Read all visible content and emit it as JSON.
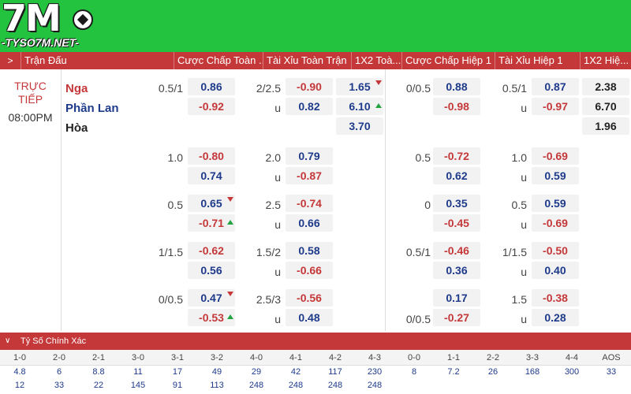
{
  "logo": {
    "big": "7M",
    "site": "-TYSO7M.NET-"
  },
  "header": {
    "arrow": ">",
    "cols": [
      "Trận Đấu",
      "Cược Chấp Toàn ...",
      "Tài Xỉu Toàn Trận",
      "1X2 Toà...",
      "Cược Chấp Hiệp 1",
      "Tài Xỉu Hiệp 1",
      "1X2 Hiệ..."
    ]
  },
  "match": {
    "status_line1": "TRỰC",
    "status_line2": "TIẾP",
    "time": "08:00PM",
    "home": "Nga",
    "away": "Phần Lan",
    "draw": "Hòa"
  },
  "rows": [
    {
      "ah_line": "0.5/1",
      "ah_home": "0.86",
      "ah_away": "-0.92",
      "ou_line": "2/2.5",
      "ou_over": "-0.90",
      "ou_u": "u",
      "ou_under": "0.82",
      "x12": [
        "1.65",
        "6.10",
        "3.70"
      ],
      "h1_ah_line": "0/0.5",
      "h1_ah_home": "0.88",
      "h1_ah_away": "-0.98",
      "h1_ou_line": "0.5/1",
      "h1_ou_over": "0.87",
      "h1_ou_u": "u",
      "h1_ou_under": "-0.97",
      "h1_x12": [
        "2.38",
        "6.70",
        "1.96"
      ]
    },
    {
      "ah_line": "1.0",
      "ah_home": "-0.80",
      "ah_away": "0.74",
      "ou_line": "2.0",
      "ou_over": "0.79",
      "ou_u": "u",
      "ou_under": "-0.87",
      "h1_ah_line": "0.5",
      "h1_ah_home": "-0.72",
      "h1_ah_away": "0.62",
      "h1_ou_line": "1.0",
      "h1_ou_over": "-0.69",
      "h1_ou_u": "u",
      "h1_ou_under": "0.59"
    },
    {
      "ah_line": "0.5",
      "ah_home": "0.65",
      "ah_away": "-0.71",
      "ou_line": "2.5",
      "ou_over": "-0.74",
      "ou_u": "u",
      "ou_under": "0.66",
      "h1_ah_line": "0",
      "h1_ah_home": "0.35",
      "h1_ah_away": "-0.45",
      "h1_ou_line": "0.5",
      "h1_ou_over": "0.59",
      "h1_ou_u": "u",
      "h1_ou_under": "-0.69"
    },
    {
      "ah_line": "1/1.5",
      "ah_home": "-0.62",
      "ah_away": "0.56",
      "ou_line": "1.5/2",
      "ou_over": "0.58",
      "ou_u": "u",
      "ou_under": "-0.66",
      "h1_ah_line": "0.5/1",
      "h1_ah_home": "-0.46",
      "h1_ah_away": "0.36",
      "h1_ou_line": "1/1.5",
      "h1_ou_over": "-0.50",
      "h1_ou_u": "u",
      "h1_ou_under": "0.40"
    },
    {
      "ah_line": "0/0.5",
      "ah_home": "0.47",
      "ah_away": "-0.53",
      "ou_line": "2.5/3",
      "ou_over": "-0.56",
      "ou_u": "u",
      "ou_under": "0.48",
      "h1_ah_line2": "0/0.5",
      "h1_ah_home": "0.17",
      "h1_ah_away": "-0.27",
      "h1_ou_line": "1.5",
      "h1_ou_over": "-0.38",
      "h1_ou_u": "u",
      "h1_ou_under": "0.28"
    }
  ],
  "correct_score": {
    "title": "Tỷ Số Chính Xác",
    "chevron": "∨",
    "scores": [
      "1-0",
      "2-0",
      "2-1",
      "3-0",
      "3-1",
      "3-2",
      "4-0",
      "4-1",
      "4-2",
      "4-3",
      "0-0",
      "1-1",
      "2-2",
      "3-3",
      "4-4",
      "AOS"
    ],
    "row1": [
      "4.8",
      "6",
      "8.8",
      "11",
      "17",
      "49",
      "29",
      "42",
      "117",
      "230",
      "8",
      "7.2",
      "26",
      "168",
      "300",
      "33"
    ],
    "row2": [
      "12",
      "33",
      "22",
      "145",
      "91",
      "113",
      "248",
      "248",
      "248",
      "248",
      "",
      "",
      "",
      "",
      "",
      ""
    ]
  },
  "colors": {
    "accent": "#c5383a",
    "green": "#23c33f",
    "blue": "#1e3a8a"
  }
}
